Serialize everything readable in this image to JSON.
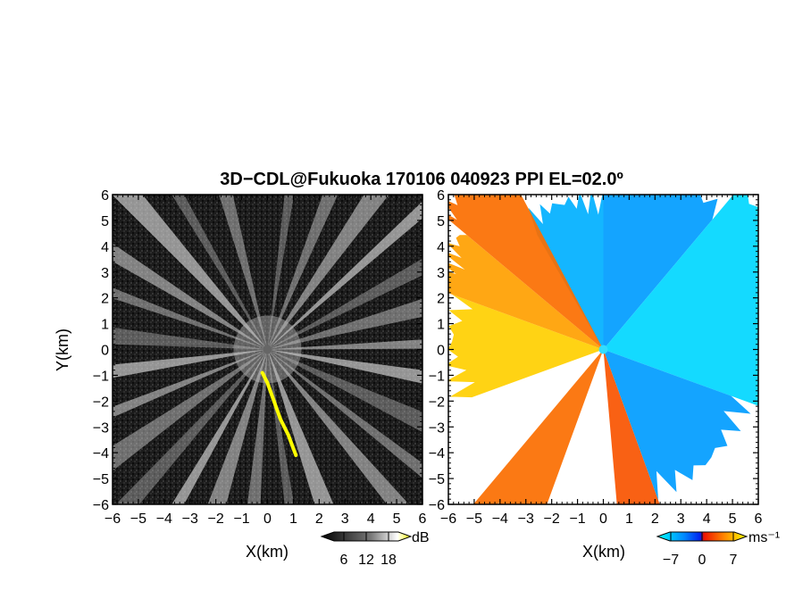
{
  "chart_data": [
    {
      "type": "heatmap",
      "panel": "reflectivity",
      "title": "3D−CDL@Fukuoka 170106 040923 PPI EL=02.0º",
      "xlabel": "X(km)",
      "ylabel": "Y(km)",
      "xlim": [
        -6,
        6
      ],
      "ylim": [
        -6,
        6
      ],
      "xticks": [
        "−6",
        "−5",
        "−4",
        "−3",
        "−2",
        "−1",
        "0",
        "1",
        "2",
        "3",
        "4",
        "5",
        "6"
      ],
      "yticks": [
        "6",
        "5",
        "4",
        "3",
        "2",
        "1",
        "0",
        "−1",
        "−2",
        "−3",
        "−4",
        "−5",
        "−6"
      ],
      "colorbar": {
        "unit": "dB",
        "ticks": [
          "6",
          "12",
          "18"
        ],
        "tick_values": [
          6,
          12,
          18
        ],
        "range": [
          0,
          24
        ],
        "colors": [
          "#000000",
          "#ffffff",
          "#ffff00"
        ]
      },
      "features": {
        "rays_azimuth_deg": [
          8,
          22,
          35,
          48,
          62,
          75,
          88,
          100,
          115,
          128,
          140,
          160,
          172,
          185,
          198,
          210,
          222,
          235,
          248,
          262,
          275,
          290,
          302,
          318,
          330,
          345
        ],
        "yellow_streak_km": [
          [
            -0.2,
            -0.9
          ],
          [
            0.0,
            -1.3
          ],
          [
            0.25,
            -2.0
          ],
          [
            0.5,
            -2.7
          ],
          [
            0.8,
            -3.3
          ],
          [
            1.1,
            -4.1
          ]
        ]
      }
    },
    {
      "type": "heatmap",
      "panel": "radial-velocity",
      "xlabel": "X(km)",
      "ylabel": "",
      "xlim": [
        -6,
        6
      ],
      "ylim": [
        -6,
        6
      ],
      "xticks": [
        "−6",
        "−5",
        "−4",
        "−3",
        "−2",
        "−1",
        "0",
        "1",
        "2",
        "3",
        "4",
        "5",
        "6"
      ],
      "yticks": [
        "6",
        "5",
        "4",
        "3",
        "2",
        "1",
        "0",
        "−1",
        "−2",
        "−3",
        "−4",
        "−5",
        "−6"
      ],
      "colorbar": {
        "unit": "ms⁻¹",
        "ticks": [
          "−7",
          "0",
          "7"
        ],
        "tick_values": [
          -7,
          0,
          7
        ],
        "range": [
          -10,
          10
        ],
        "colors": [
          "#00ffff",
          "#0044ff",
          "#ff2200",
          "#ffaa00",
          "#ffff00"
        ]
      },
      "features": {
        "sectors": [
          {
            "azimuth_from_deg": 330,
            "azimuth_to_deg": 360,
            "velocity": -6
          },
          {
            "azimuth_from_deg": 0,
            "azimuth_to_deg": 40,
            "velocity": -5
          },
          {
            "azimuth_from_deg": 40,
            "azimuth_to_deg": 110,
            "velocity": -8
          },
          {
            "azimuth_from_deg": 110,
            "azimuth_to_deg": 160,
            "velocity": -5
          },
          {
            "azimuth_from_deg": 160,
            "azimuth_to_deg": 175,
            "velocity": 3
          },
          {
            "azimuth_from_deg": 200,
            "azimuth_to_deg": 220,
            "velocity": 4
          },
          {
            "azimuth_from_deg": 250,
            "azimuth_to_deg": 290,
            "velocity": 8
          },
          {
            "azimuth_from_deg": 290,
            "azimuth_to_deg": 310,
            "velocity": 6
          },
          {
            "azimuth_from_deg": 310,
            "azimuth_to_deg": 332,
            "velocity": 4
          }
        ]
      }
    }
  ]
}
